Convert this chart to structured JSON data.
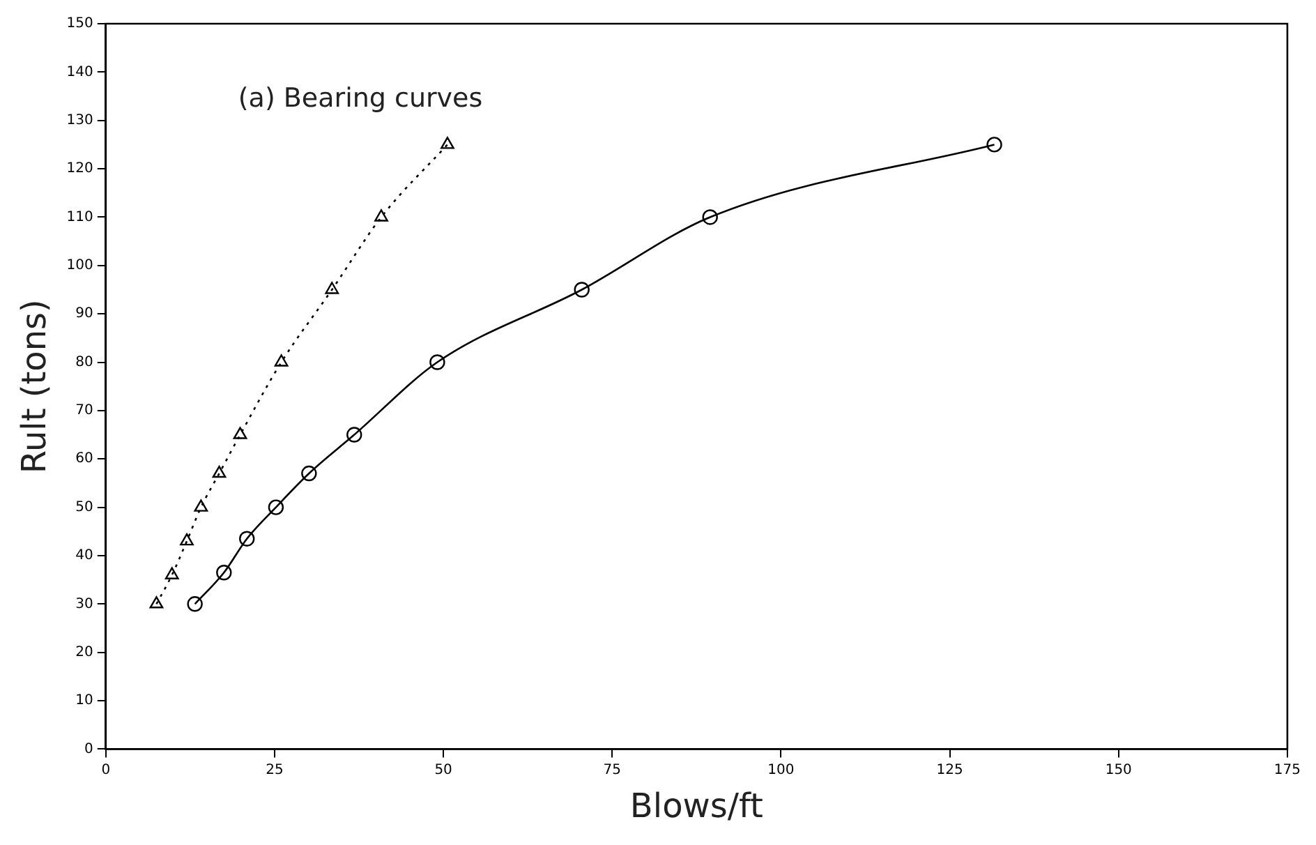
{
  "chart_data": {
    "type": "line",
    "title": "(a) Bearing curves",
    "xlabel": "Blows/ft",
    "ylabel": "Rult (tons)",
    "xlim": [
      0,
      175
    ],
    "xticks": [
      0,
      25,
      50,
      75,
      100,
      125,
      150,
      175
    ],
    "ylim": [
      0,
      150
    ],
    "yticks": [
      0,
      10,
      20,
      30,
      40,
      50,
      60,
      70,
      80,
      90,
      100,
      110,
      120,
      130,
      140,
      150
    ],
    "grid": false,
    "legend": false,
    "series": [
      {
        "color": "#000000",
        "marker": "triangle",
        "line_style": "dotted",
        "x": [
          7.5,
          9.8,
          12,
          14.1,
          16.8,
          19.9,
          26,
          33.5,
          40.8,
          50.6
        ],
        "values": [
          30,
          36,
          43,
          50,
          57,
          65,
          80,
          95,
          110,
          125
        ]
      },
      {
        "color": "#000000",
        "marker": "circle",
        "line_style": "solid",
        "x": [
          13.2,
          17.5,
          20.9,
          25.2,
          30.1,
          36.8,
          49.1,
          70.5,
          89.5,
          131.6
        ],
        "values": [
          30,
          36.5,
          43.5,
          50,
          57,
          65,
          80,
          95,
          110,
          125
        ]
      }
    ]
  }
}
